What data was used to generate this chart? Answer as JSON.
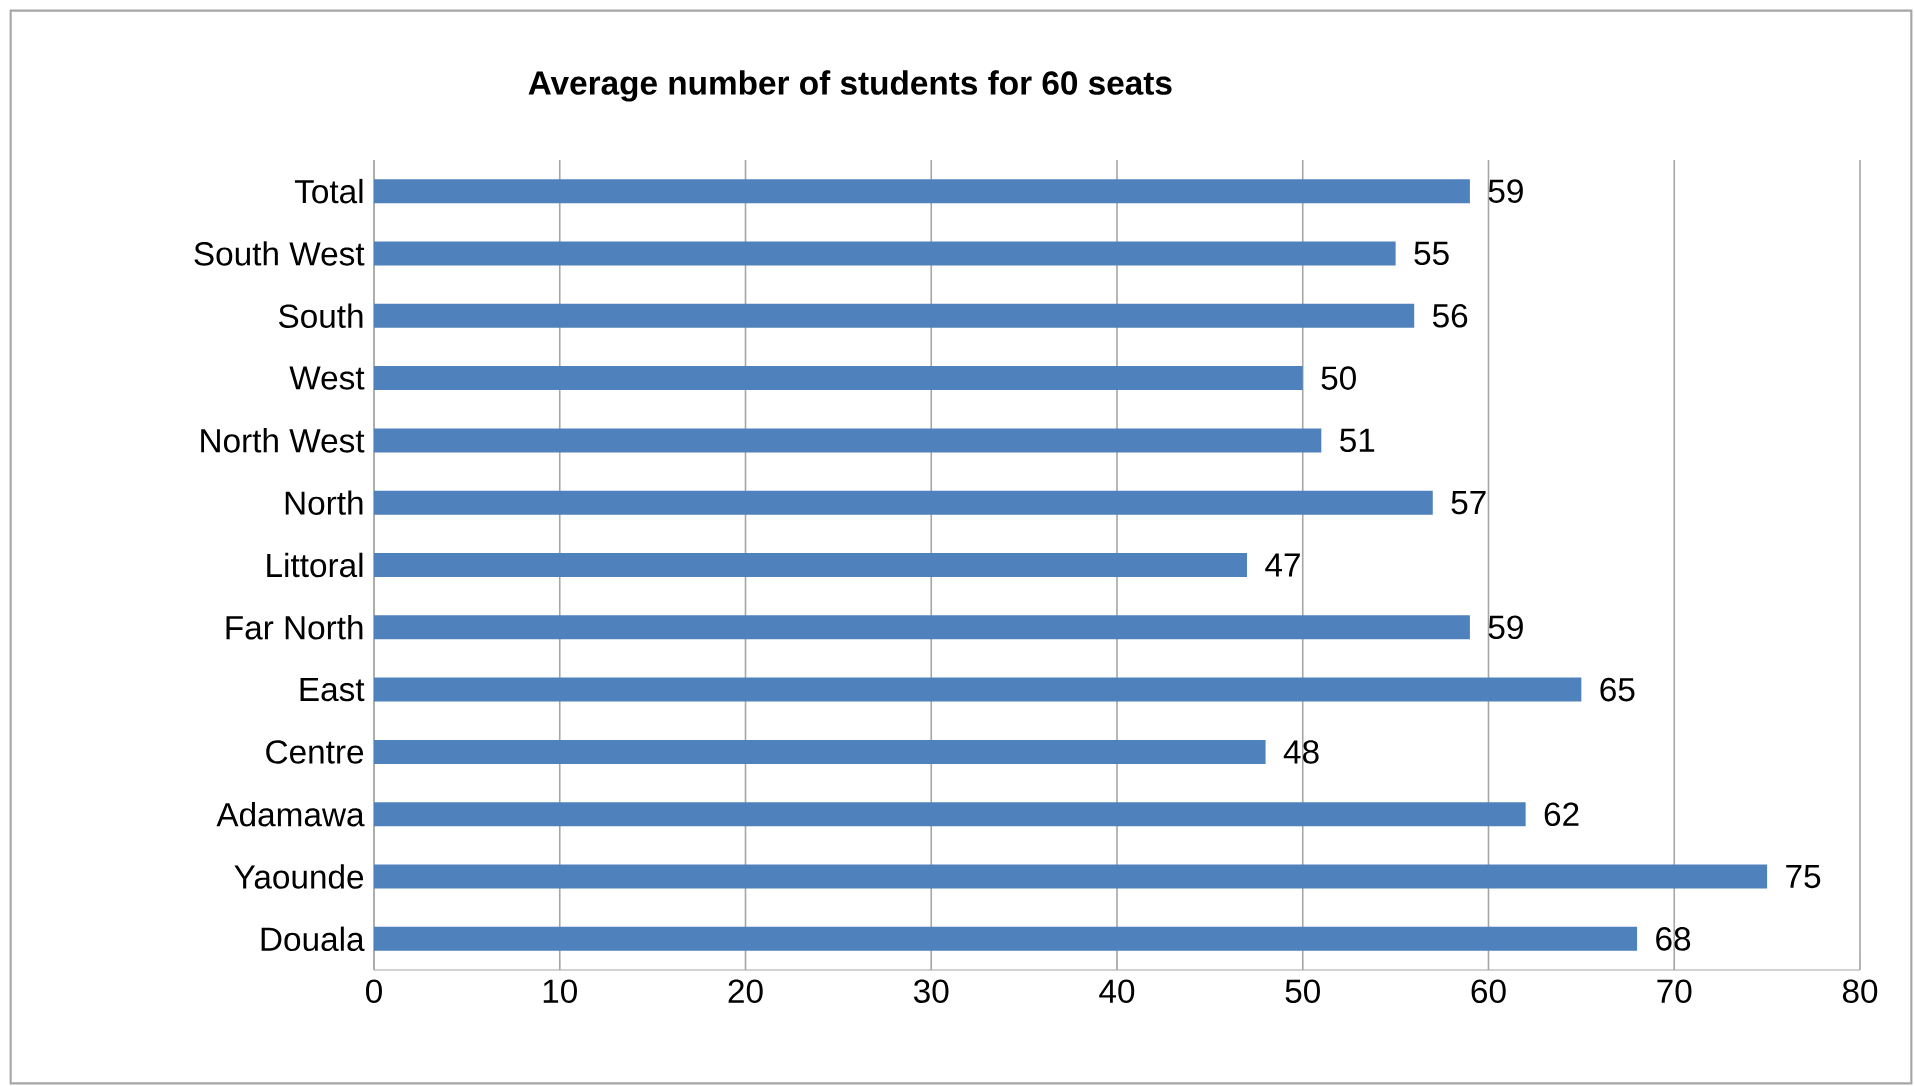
{
  "chart_data": {
    "type": "bar",
    "orientation": "horizontal",
    "title": "Average number of students for 60 seats",
    "categories": [
      "Total",
      "South West",
      "South",
      "West",
      "North West",
      "North",
      "Littoral",
      "Far North",
      "East",
      "Centre",
      "Adamawa",
      "Yaounde",
      "Douala"
    ],
    "values": [
      59,
      55,
      56,
      50,
      51,
      57,
      47,
      59,
      65,
      48,
      62,
      75,
      68
    ],
    "color": "#4f81bd",
    "xlim": [
      0,
      80
    ],
    "xticks": [
      0,
      10,
      20,
      30,
      40,
      50,
      60,
      70,
      80
    ],
    "grid": "x",
    "data_labels": true
  }
}
